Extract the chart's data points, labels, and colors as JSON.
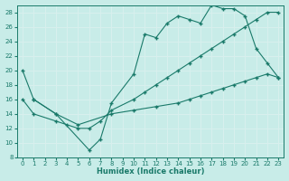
{
  "xlabel": "Humidex (Indice chaleur)",
  "bg_color": "#c8ece8",
  "grid_color": "#d8f0ee",
  "line_color": "#1a7a6a",
  "xlim": [
    -0.5,
    23.5
  ],
  "ylim": [
    8,
    29
  ],
  "xticks": [
    0,
    1,
    2,
    3,
    4,
    5,
    6,
    7,
    8,
    9,
    10,
    11,
    12,
    13,
    14,
    15,
    16,
    17,
    18,
    19,
    20,
    21,
    22,
    23
  ],
  "yticks": [
    8,
    10,
    12,
    14,
    16,
    18,
    20,
    22,
    24,
    26,
    28
  ],
  "line1_x": [
    0,
    1,
    3,
    6,
    7,
    8,
    10,
    11,
    12,
    13,
    14,
    15,
    16,
    17,
    18,
    19,
    20,
    21,
    22,
    23
  ],
  "line1_y": [
    20,
    16,
    14,
    9,
    10.5,
    15.5,
    19.5,
    25,
    24.5,
    26.5,
    27.5,
    27.0,
    26.5,
    29.0,
    28.5,
    28.5,
    27.5,
    23.0,
    21.0,
    19.0
  ],
  "line2_x": [
    0,
    1,
    3,
    4,
    5,
    6,
    7,
    8,
    10,
    11,
    12,
    13,
    14,
    15,
    16,
    17,
    18,
    19,
    20,
    21,
    22,
    23
  ],
  "line2_y": [
    16,
    14,
    13,
    12.5,
    12.0,
    12.0,
    13.0,
    14.5,
    16.0,
    17.0,
    18.0,
    19.0,
    20.0,
    21.0,
    22.0,
    23.0,
    24.0,
    25.0,
    26.0,
    27.0,
    28.0,
    28.0
  ],
  "line3_x": [
    1,
    3,
    5,
    8,
    10,
    12,
    14,
    15,
    16,
    17,
    18,
    19,
    20,
    21,
    22,
    23
  ],
  "line3_y": [
    16,
    14,
    12.5,
    14.0,
    14.5,
    15.0,
    15.5,
    16.0,
    16.5,
    17.0,
    17.5,
    18.0,
    18.5,
    19.0,
    19.5,
    19.0
  ]
}
